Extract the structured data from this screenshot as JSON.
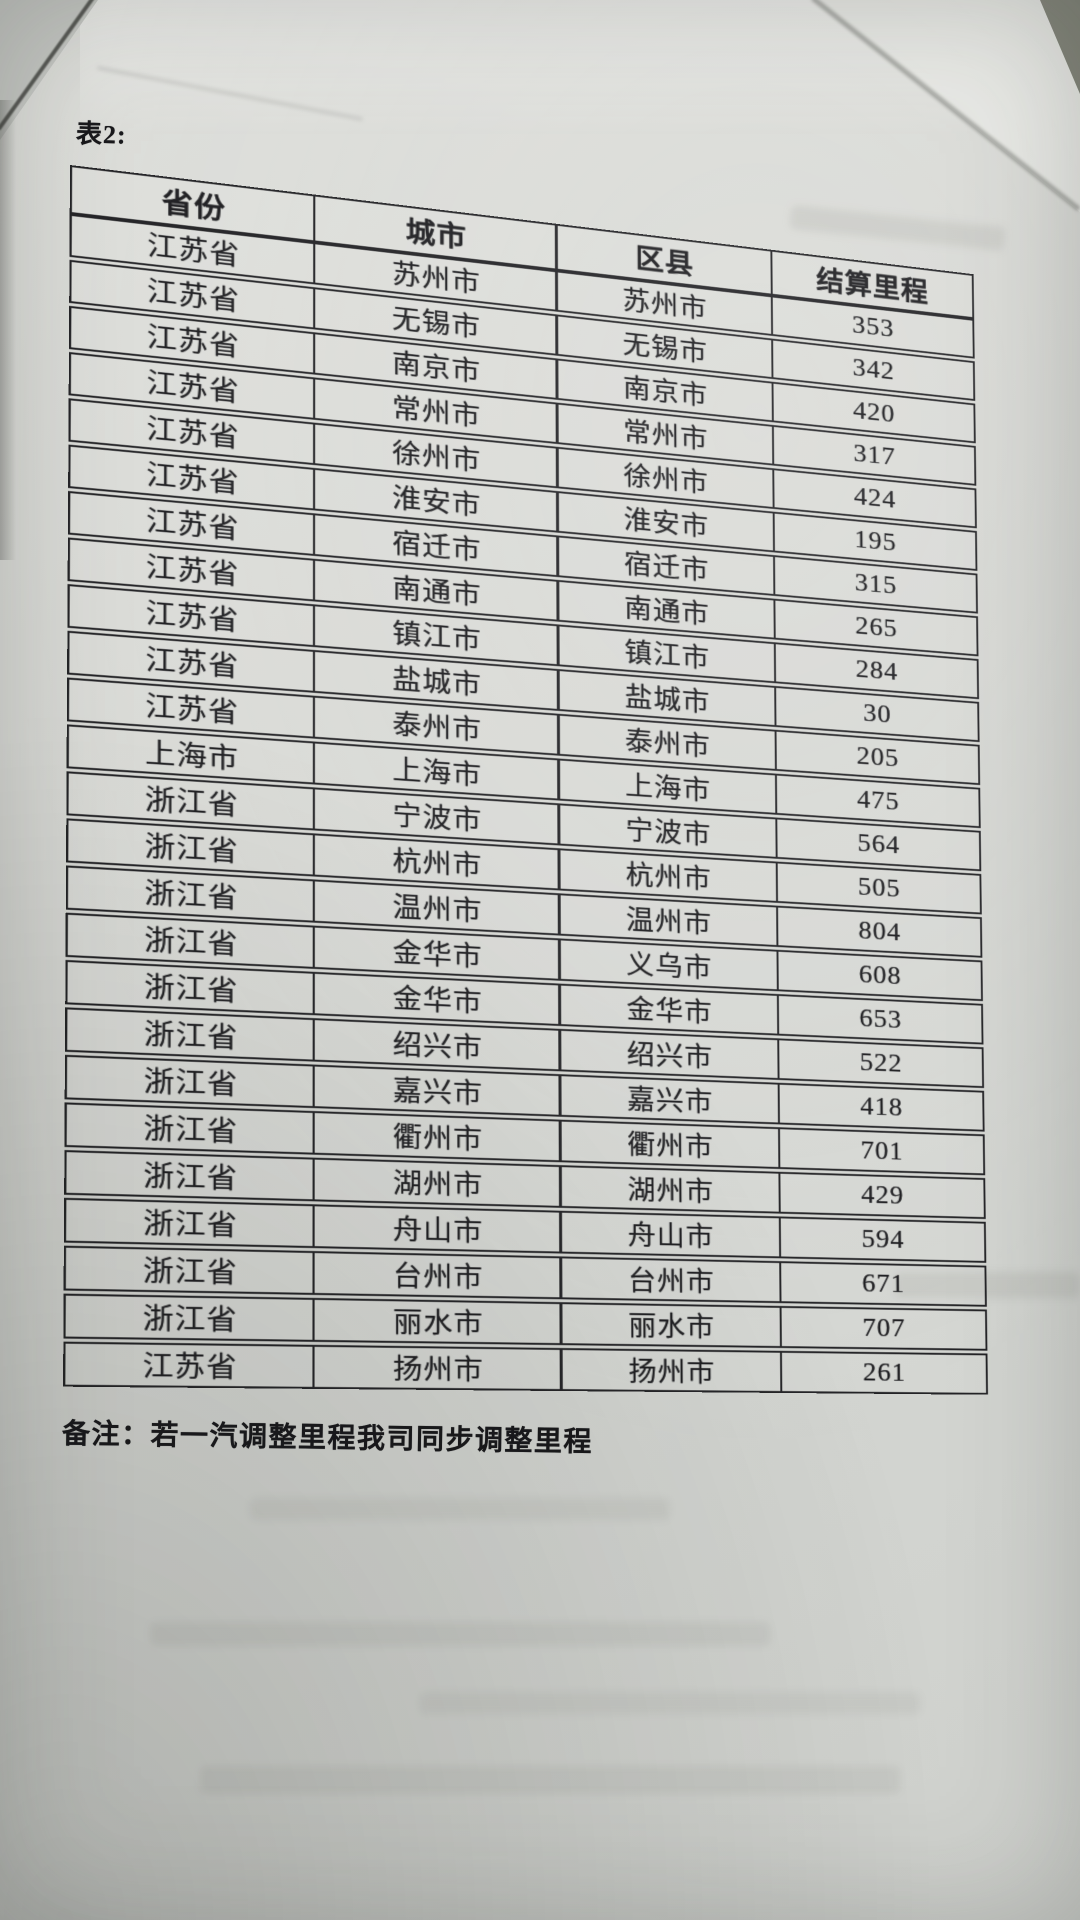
{
  "page": {
    "title": "表2:",
    "note": "备注：若一汽调整里程我司同步调整里程"
  },
  "table": {
    "columns": [
      "省份",
      "城市",
      "区县",
      "结算里程"
    ],
    "rows": [
      [
        "江苏省",
        "苏州市",
        "苏州市",
        "353"
      ],
      [
        "江苏省",
        "无锡市",
        "无锡市",
        "342"
      ],
      [
        "江苏省",
        "南京市",
        "南京市",
        "420"
      ],
      [
        "江苏省",
        "常州市",
        "常州市",
        "317"
      ],
      [
        "江苏省",
        "徐州市",
        "徐州市",
        "424"
      ],
      [
        "江苏省",
        "淮安市",
        "淮安市",
        "195"
      ],
      [
        "江苏省",
        "宿迁市",
        "宿迁市",
        "315"
      ],
      [
        "江苏省",
        "南通市",
        "南通市",
        "265"
      ],
      [
        "江苏省",
        "镇江市",
        "镇江市",
        "284"
      ],
      [
        "江苏省",
        "盐城市",
        "盐城市",
        "30"
      ],
      [
        "江苏省",
        "泰州市",
        "泰州市",
        "205"
      ],
      [
        "上海市",
        "上海市",
        "上海市",
        "475"
      ],
      [
        "浙江省",
        "宁波市",
        "宁波市",
        "564"
      ],
      [
        "浙江省",
        "杭州市",
        "杭州市",
        "505"
      ],
      [
        "浙江省",
        "温州市",
        "温州市",
        "804"
      ],
      [
        "浙江省",
        "金华市",
        "义乌市",
        "608"
      ],
      [
        "浙江省",
        "金华市",
        "金华市",
        "653"
      ],
      [
        "浙江省",
        "绍兴市",
        "绍兴市",
        "522"
      ],
      [
        "浙江省",
        "嘉兴市",
        "嘉兴市",
        "418"
      ],
      [
        "浙江省",
        "衢州市",
        "衢州市",
        "701"
      ],
      [
        "浙江省",
        "湖州市",
        "湖州市",
        "429"
      ],
      [
        "浙江省",
        "舟山市",
        "舟山市",
        "594"
      ],
      [
        "浙江省",
        "台州市",
        "台州市",
        "671"
      ],
      [
        "浙江省",
        "丽水市",
        "丽水市",
        "707"
      ],
      [
        "江苏省",
        "扬州市",
        "扬州市",
        "261"
      ]
    ]
  }
}
